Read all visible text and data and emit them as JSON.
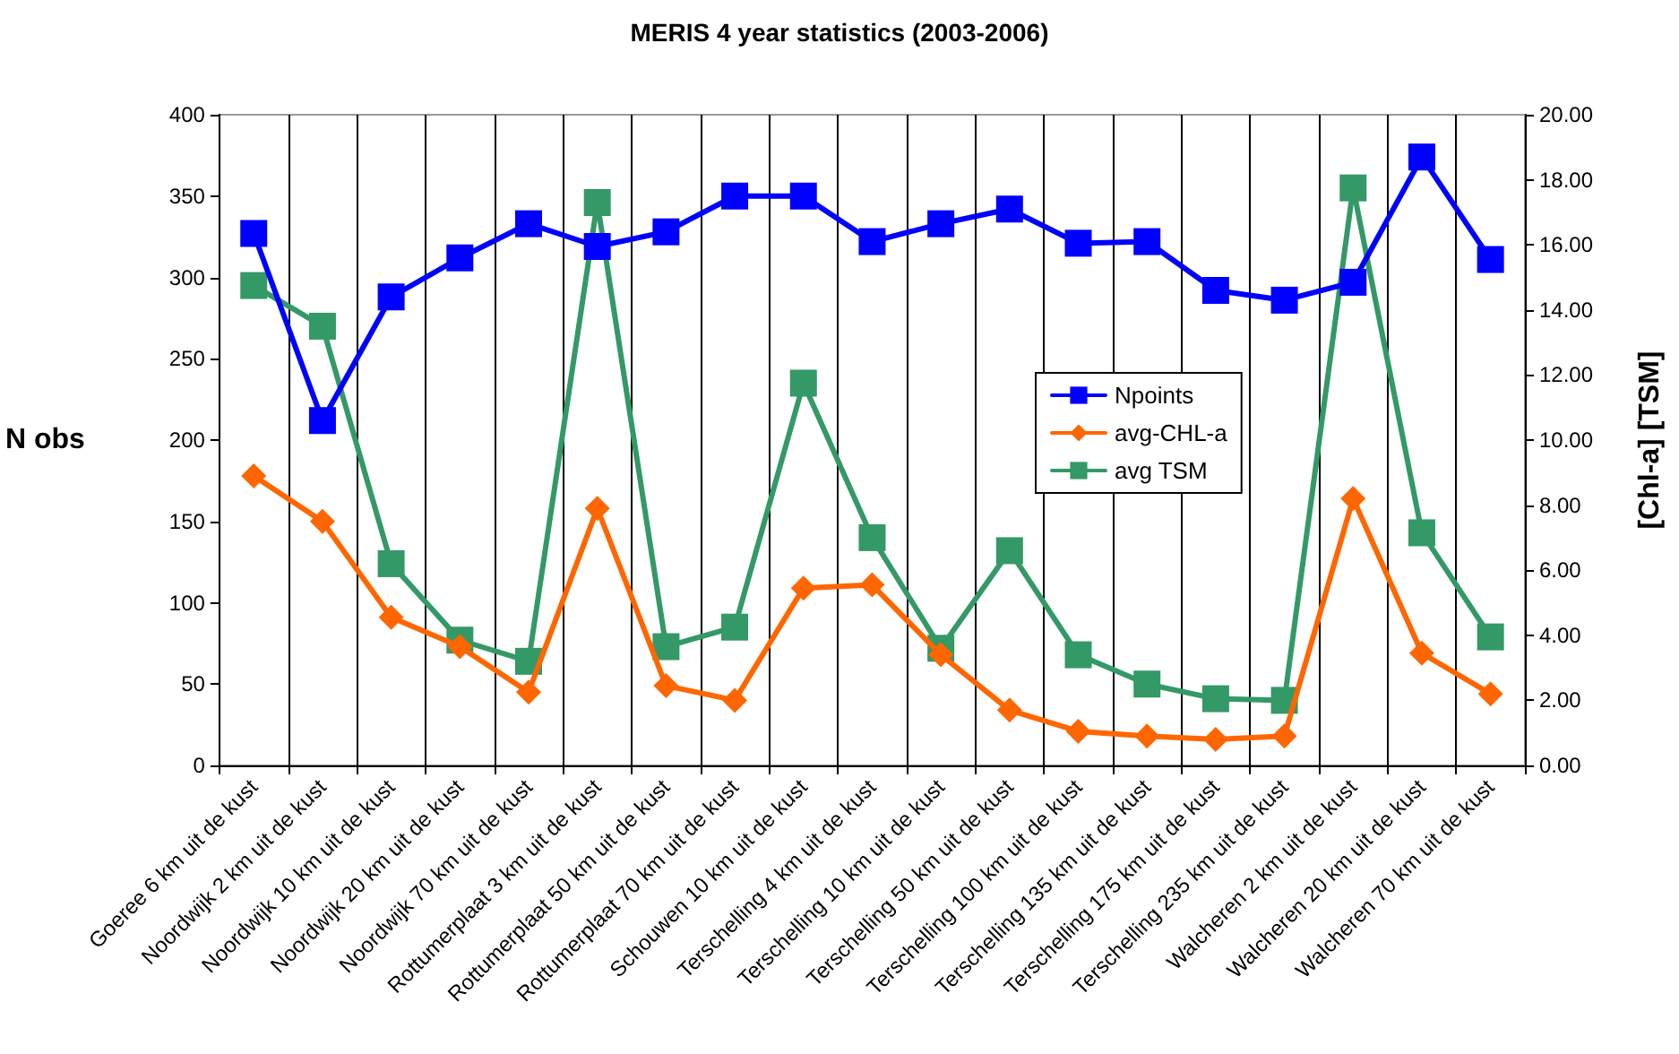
{
  "chart_data": {
    "type": "line",
    "title": "MERIS 4 year statistics (2003-2006)",
    "ylabel": "N obs",
    "y2label": "[Chl-a] [TSM]",
    "categories": [
      "Goeree 6 km uit de kust",
      "Noordwijk 2 km uit de kust",
      "Noordwijk 10 km uit de kust",
      "Noordwijk 20 km uit de kust",
      "Noordwijk 70 km uit de kust",
      "Rottumerplaat 3 km uit de kust",
      "Rottumerplaat 50 km uit de kust",
      "Rottumerplaat 70 km uit de kust",
      "Schouwen 10 km uit de kust",
      "Terschelling 4 km uit de kust",
      "Terschelling 10 km uit de kust",
      "Terschelling 50 km uit de kust",
      "Terschelling 100 km uit de kust",
      "Terschelling 135 km uit de kust",
      "Terschelling 175 km uit de kust",
      "Terschelling 235 km uit de kust",
      "Walcheren 2 km uit de kust",
      "Walcheren 20 km uit de kust",
      "Walcheren 70 km uit de kust"
    ],
    "series": [
      {
        "name": "Npoints",
        "color": "#0000ff",
        "marker": "square",
        "values": [
          327,
          212,
          288,
          312,
          333,
          319,
          328,
          350,
          350,
          322,
          333,
          342,
          321,
          322,
          292,
          286,
          297,
          374,
          311
        ]
      },
      {
        "name": "avg-CHL-a",
        "color": "#ff6600",
        "marker": "diamond",
        "axis": "y2",
        "values": [
          8.9,
          7.5,
          4.55,
          3.65,
          2.25,
          7.9,
          2.45,
          2.0,
          5.45,
          5.55,
          3.4,
          1.7,
          1.05,
          0.9,
          0.8,
          0.9,
          8.2,
          3.45,
          2.2
        ]
      },
      {
        "name": "avg TSM",
        "color": "#339966",
        "marker": "square",
        "axis": "y2",
        "values": [
          14.75,
          13.5,
          6.2,
          3.85,
          3.2,
          17.3,
          3.65,
          4.25,
          11.75,
          7.0,
          3.6,
          6.6,
          3.4,
          2.5,
          2.05,
          2.0,
          17.75,
          7.15,
          3.95
        ]
      }
    ],
    "ylim": [
      0,
      400
    ],
    "yticks": [
      0,
      50,
      100,
      150,
      200,
      250,
      300,
      350,
      400
    ],
    "y2lim": [
      0,
      20
    ],
    "y2ticks": [
      {
        "value": 0,
        "label": "0.00"
      },
      {
        "value": 2,
        "label": "2.00"
      },
      {
        "value": 4,
        "label": "4.00"
      },
      {
        "value": 6,
        "label": "6.00"
      },
      {
        "value": 8,
        "label": "8.00"
      },
      {
        "value": 10,
        "label": "10.00"
      },
      {
        "value": 12,
        "label": "12.00"
      },
      {
        "value": 14,
        "label": "14.00"
      },
      {
        "value": 16,
        "label": "16.00"
      },
      {
        "value": 18,
        "label": "18.00"
      },
      {
        "value": 20,
        "label": "20.00"
      }
    ],
    "grid": "x",
    "legend": "center right",
    "line_style": "solid"
  }
}
